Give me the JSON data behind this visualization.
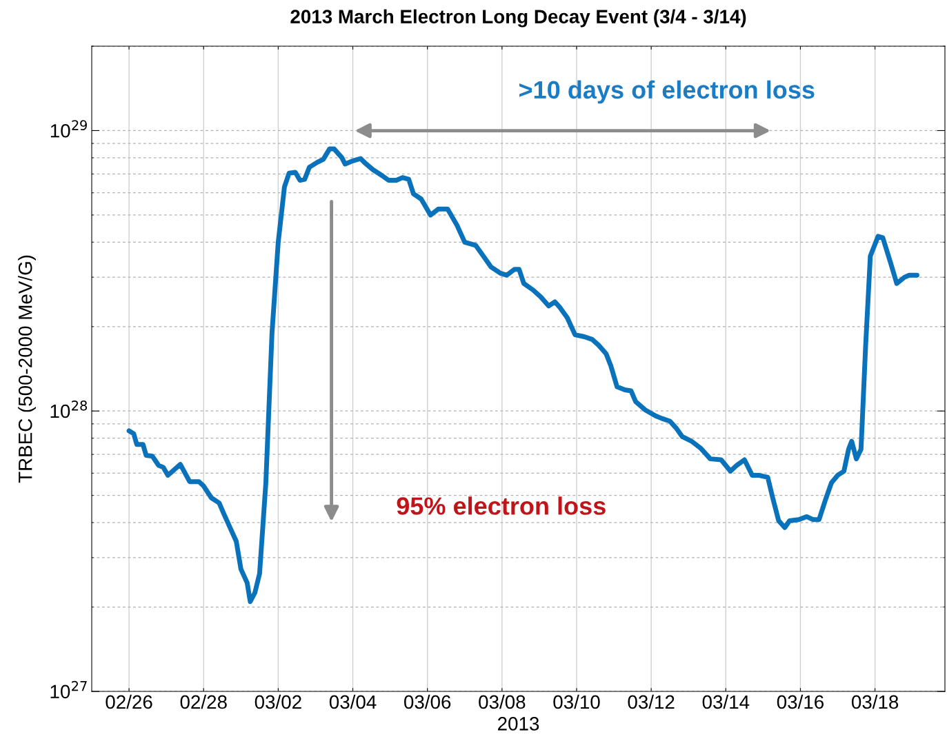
{
  "chart_data": {
    "type": "line",
    "title": "2013 March Electron Long Decay Event (3/4 - 3/14)",
    "xlabel": "2013",
    "ylabel": "TRBEC (500-2000 MeV/G)",
    "x": [
      "2013-02-26T00:00",
      "2013-02-26T03:00",
      "2013-02-26T05:00",
      "2013-02-26T09:00",
      "2013-02-26T11:00",
      "2013-02-26T15:00",
      "2013-02-26T19:00",
      "2013-02-26T22:00",
      "2013-02-27T01:00",
      "2013-02-27T04:00",
      "2013-02-27T09:00",
      "2013-02-27T15:00",
      "2013-02-27T21:00",
      "2013-02-28T00:00",
      "2013-02-28T05:00",
      "2013-02-28T10:00",
      "2013-02-28T13:00",
      "2013-02-28T17:00",
      "2013-02-28T21:00",
      "2013-03-01T00:00",
      "2013-03-01T04:00",
      "2013-03-01T06:00",
      "2013-03-01T09:00",
      "2013-03-01T12:00",
      "2013-03-01T16:00",
      "2013-03-01T20:00",
      "2013-03-02T00:00",
      "2013-03-02T04:00",
      "2013-03-02T07:00",
      "2013-03-02T11:00",
      "2013-03-02T14:00",
      "2013-03-02T17:00",
      "2013-03-02T20:00",
      "2013-03-03T01:00",
      "2013-03-03T05:00",
      "2013-03-03T09:00",
      "2013-03-03T12:00",
      "2013-03-03T17:00",
      "2013-03-03T19:00",
      "2013-03-04T00:00",
      "2013-03-04T05:00",
      "2013-03-04T08:00",
      "2013-03-04T13:00",
      "2013-03-04T19:00",
      "2013-03-04T23:00",
      "2013-03-05T04:00",
      "2013-03-05T08:00",
      "2013-03-05T12:00",
      "2013-03-05T15:00",
      "2013-03-05T20:00",
      "2013-03-06T02:00",
      "2013-03-06T07:00",
      "2013-03-06T13:00",
      "2013-03-06T19:00",
      "2013-03-07T00:00",
      "2013-03-07T07:00",
      "2013-03-07T12:00",
      "2013-03-07T17:00",
      "2013-03-07T23:00",
      "2013-03-08T03:00",
      "2013-03-08T08:00",
      "2013-03-08T11:00",
      "2013-03-08T14:00",
      "2013-03-08T20:00",
      "2013-03-09T01:00",
      "2013-03-09T06:00",
      "2013-03-09T10:00",
      "2013-03-09T13:00",
      "2013-03-09T18:00",
      "2013-03-09T23:00",
      "2013-03-10T05:00",
      "2013-03-10T10:00",
      "2013-03-10T14:00",
      "2013-03-10T19:00",
      "2013-03-10T22:00",
      "2013-03-11T02:00",
      "2013-03-11T07:00",
      "2013-03-11T11:00",
      "2013-03-11T14:00",
      "2013-03-11T20:00",
      "2013-03-12T03:00",
      "2013-03-12T07:00",
      "2013-03-12T12:00",
      "2013-03-12T16:00",
      "2013-03-12T20:00",
      "2013-03-13T02:00",
      "2013-03-13T08:00",
      "2013-03-13T14:00",
      "2013-03-13T21:00",
      "2013-03-14T03:00",
      "2013-03-14T07:00",
      "2013-03-14T12:00",
      "2013-03-14T17:00",
      "2013-03-14T21:00",
      "2013-03-15T03:00",
      "2013-03-15T06:00",
      "2013-03-15T10:00",
      "2013-03-15T14:00",
      "2013-03-15T17:00",
      "2013-03-15T23:00",
      "2013-03-16T04:00",
      "2013-03-16T08:00",
      "2013-03-16T12:00",
      "2013-03-16T16:00",
      "2013-03-16T20:00",
      "2013-03-17T00:00",
      "2013-03-17T04:00",
      "2013-03-17T07:00",
      "2013-03-17T09:00",
      "2013-03-17T12:00",
      "2013-03-17T15:00",
      "2013-03-17T18:00",
      "2013-03-17T21:00",
      "2013-03-18T02:00",
      "2013-03-18T05:00",
      "2013-03-18T10:00",
      "2013-03-18T14:00",
      "2013-03-18T19:00",
      "2013-03-18T22:00",
      "2013-03-19T03:00"
    ],
    "series": [
      {
        "color": "#0a72ba",
        "values": [
          8.5e+27,
          8.3e+27,
          7.6e+27,
          7.6e+27,
          6.95e+27,
          6.9e+27,
          6.4e+27,
          6.3e+27,
          5.9e+27,
          6.1e+27,
          6.45e+27,
          5.6e+27,
          5.6e+27,
          5.4e+27,
          4.9e+27,
          4.7e+27,
          4.3e+27,
          3.84e+27,
          3.43e+27,
          2.73e+27,
          2.44e+27,
          2.09e+27,
          2.25e+27,
          2.63e+27,
          5.5e+27,
          1.9e+28,
          4e+28,
          6.3e+28,
          7.05e+28,
          7.1e+28,
          6.65e+28,
          6.7e+28,
          7.4e+28,
          7.7e+28,
          7.9e+28,
          8.6e+28,
          8.6e+28,
          8e+28,
          7.6e+28,
          7.8e+28,
          7.95e+28,
          7.65e+28,
          7.25e+28,
          6.9e+28,
          6.65e+28,
          6.65e+28,
          6.8e+28,
          6.7e+28,
          5.95e+28,
          5.7e+28,
          5e+28,
          5.25e+28,
          5.25e+28,
          4.6e+28,
          4e+28,
          3.9e+28,
          3.57e+28,
          3.26e+28,
          3.1e+28,
          3.05e+28,
          3.2e+28,
          3.2e+28,
          2.85e+28,
          2.7e+28,
          2.55e+28,
          2.37e+28,
          2.45e+28,
          2.35e+28,
          2.15e+28,
          1.87e+28,
          1.84e+28,
          1.8e+28,
          1.72e+28,
          1.6e+28,
          1.45e+28,
          1.22e+28,
          1.19e+28,
          1.18e+28,
          1.08e+28,
          1.01e+28,
          9.6e+27,
          9.4e+27,
          9.2e+27,
          8.7e+27,
          8.1e+27,
          7.8e+27,
          7.35e+27,
          6.75e+27,
          6.7e+27,
          6.1e+27,
          6.4e+27,
          6.7e+27,
          5.9e+27,
          5.9e+27,
          5.8e+27,
          4.95e+27,
          4.06e+27,
          3.84e+27,
          4.06e+27,
          4.1e+27,
          4.2e+27,
          4.1e+27,
          4.1e+27,
          4.8e+27,
          5.55e+27,
          5.9e+27,
          6.1e+27,
          7.3e+27,
          7.8e+27,
          6.75e+27,
          7.3e+27,
          1.72e+28,
          3.57e+28,
          4.2e+28,
          4.15e+28,
          3.38e+28,
          2.85e+28,
          3e+28,
          3.05e+28,
          3.05e+28
        ]
      }
    ],
    "xlim": [
      "2013-02-25T00:00",
      "2013-03-19T21:00"
    ],
    "xticks": [
      {
        "value": "2013-02-26",
        "label": "02/26"
      },
      {
        "value": "2013-02-28",
        "label": "02/28"
      },
      {
        "value": "2013-03-02",
        "label": "03/02"
      },
      {
        "value": "2013-03-04",
        "label": "03/04"
      },
      {
        "value": "2013-03-06",
        "label": "03/06"
      },
      {
        "value": "2013-03-08",
        "label": "03/08"
      },
      {
        "value": "2013-03-10",
        "label": "03/10"
      },
      {
        "value": "2013-03-12",
        "label": "03/12"
      },
      {
        "value": "2013-03-14",
        "label": "03/14"
      },
      {
        "value": "2013-03-16",
        "label": "03/16"
      },
      {
        "value": "2013-03-18",
        "label": "03/18"
      }
    ],
    "log": "y",
    "ylim": [
      1e+27,
      2e+29
    ],
    "yticks": [
      {
        "value": 1e+27,
        "label": "10$^{27}$"
      },
      {
        "value": 1e+28,
        "label": "10$^{28}$"
      },
      {
        "value": 1e+29,
        "label": "10$^{29}$"
      }
    ],
    "grid": true,
    "line_style": "solid",
    "marker": "none",
    "annotations": [
      ">10 days of electron loss",
      "95% electron loss"
    ]
  }
}
